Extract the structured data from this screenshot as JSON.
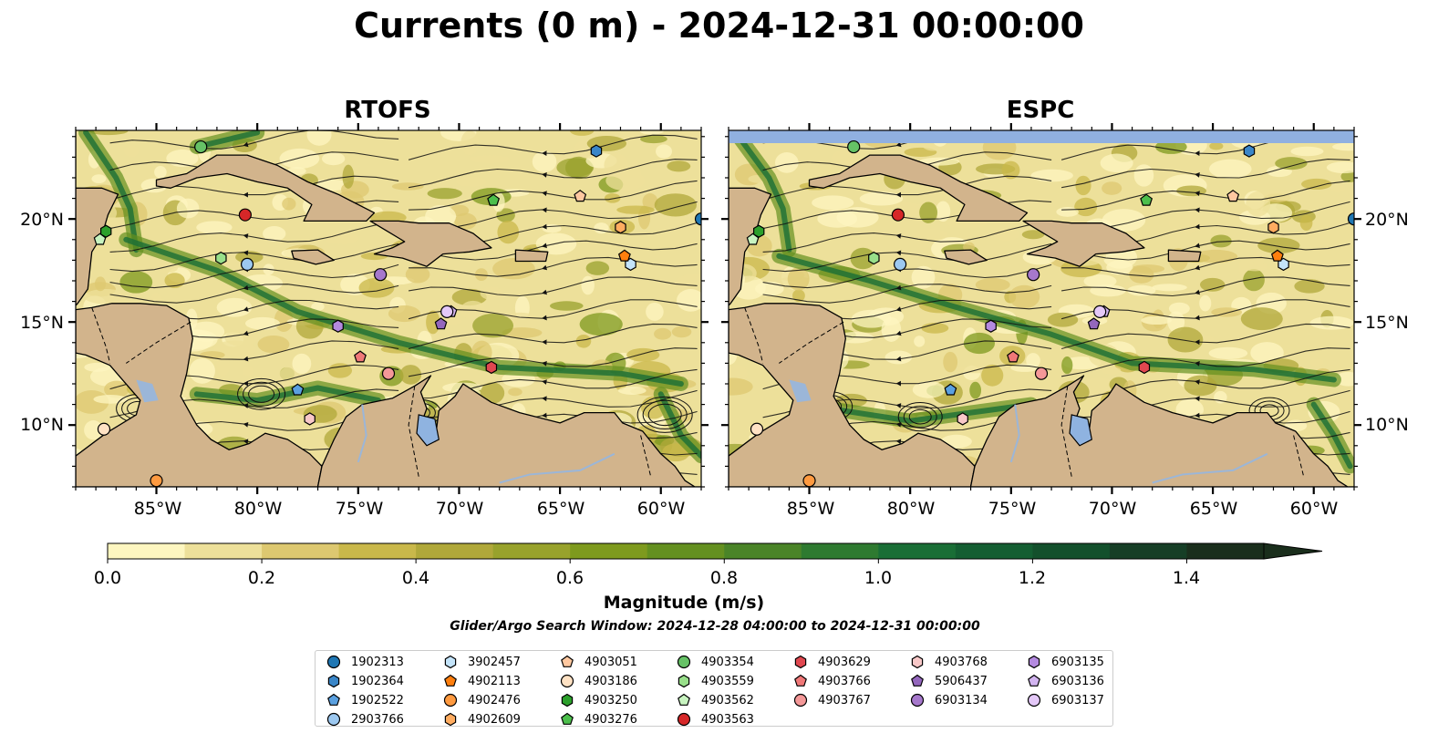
{
  "title": "Currents (0 m) - 2024-12-31 00:00:00",
  "panels": [
    {
      "title": "RTOFS",
      "closed_top": false
    },
    {
      "title": "ESPC",
      "closed_top": true
    }
  ],
  "colors": {
    "land": "#d2b48c",
    "lakes": "#8fb3e0",
    "rivers": "#9bb6d8",
    "no_data": "#90b0e0",
    "cmap": [
      "#fdf6c0",
      "#ede09a",
      "#ddc870",
      "#c9b84a",
      "#b0a83a",
      "#98a22c",
      "#7e9a1e",
      "#649020",
      "#4a8428",
      "#2e7a30",
      "#1a6e36",
      "#145e32",
      "#13502c",
      "#163e26",
      "#1a2e1c"
    ]
  },
  "colorbar": {
    "label": "Magnitude (m/s)",
    "min": 0.0,
    "max": 1.5,
    "extend": "max",
    "ticks": [
      "0.0",
      "0.2",
      "0.4",
      "0.6",
      "0.8",
      "1.0",
      "1.2",
      "1.4"
    ]
  },
  "map": {
    "lon_range": [
      -89,
      -58
    ],
    "lat_range": [
      7,
      24.3
    ],
    "lat_ticks": [
      "10°N",
      "15°N",
      "20°N"
    ],
    "lon_ticks": [
      "85°W",
      "80°W",
      "75°W",
      "70°W",
      "65°W",
      "60°W"
    ]
  },
  "search_window": "Glider/Argo Search Window: 2024-12-28 04:00:00 to 2024-12-31 00:00:00",
  "floats": [
    {
      "id": "1902313",
      "marker": "circle",
      "color": "#1f77b4",
      "lon": -58,
      "lat": 20.0
    },
    {
      "id": "1902364",
      "marker": "hexagon",
      "color": "#3a86c8",
      "lon": -63.2,
      "lat": 23.3
    },
    {
      "id": "1902522",
      "marker": "pentagon",
      "color": "#5aa0e0",
      "lon": -78.0,
      "lat": 11.7
    },
    {
      "id": "2903766",
      "marker": "circle",
      "color": "#9cc8f0",
      "lon": -80.5,
      "lat": 17.8
    },
    {
      "id": "3902457",
      "marker": "hexagon",
      "color": "#c4e4fa",
      "lon": -61.5,
      "lat": 17.8
    },
    {
      "id": "4902113",
      "marker": "pentagon",
      "color": "#ff7f0e",
      "lon": -61.8,
      "lat": 18.2
    },
    {
      "id": "4902476",
      "marker": "circle",
      "color": "#ff9a40",
      "lon": -85.0,
      "lat": 7.3
    },
    {
      "id": "4902609",
      "marker": "hexagon",
      "color": "#ffac60",
      "lon": -62.0,
      "lat": 19.6
    },
    {
      "id": "4903051",
      "marker": "pentagon",
      "color": "#ffc8a0",
      "lon": -64.0,
      "lat": 21.1
    },
    {
      "id": "4903186",
      "marker": "circle",
      "color": "#ffe2c4",
      "lon": -87.6,
      "lat": 9.8
    },
    {
      "id": "4903250",
      "marker": "hexagon",
      "color": "#2ca02c",
      "lon": -87.5,
      "lat": 19.4
    },
    {
      "id": "4903276",
      "marker": "pentagon",
      "color": "#4cbf4c",
      "lon": -68.3,
      "lat": 20.9
    },
    {
      "id": "4903354",
      "marker": "circle",
      "color": "#66c266",
      "lon": -82.8,
      "lat": 23.5
    },
    {
      "id": "4903559",
      "marker": "hexagon",
      "color": "#98df8a",
      "lon": -81.8,
      "lat": 18.1
    },
    {
      "id": "4903562",
      "marker": "pentagon",
      "color": "#c8f4c0",
      "lon": -87.8,
      "lat": 19.0
    },
    {
      "id": "4903563",
      "marker": "circle",
      "color": "#d62728",
      "lon": -80.6,
      "lat": 20.2
    },
    {
      "id": "4903629",
      "marker": "hexagon",
      "color": "#e04850",
      "lon": -68.4,
      "lat": 12.8
    },
    {
      "id": "4903766",
      "marker": "pentagon",
      "color": "#f07878",
      "lon": -74.9,
      "lat": 13.3
    },
    {
      "id": "4903767",
      "marker": "circle",
      "color": "#f49898",
      "lon": -73.5,
      "lat": 12.5
    },
    {
      "id": "4903768",
      "marker": "hexagon",
      "color": "#f8c8c8",
      "lon": -77.4,
      "lat": 10.3
    },
    {
      "id": "5906437",
      "marker": "pentagon",
      "color": "#9467bd",
      "lon": -70.9,
      "lat": 14.9
    },
    {
      "id": "6903134",
      "marker": "circle",
      "color": "#a678cc",
      "lon": -73.9,
      "lat": 17.3
    },
    {
      "id": "6903135",
      "marker": "hexagon",
      "color": "#b48ae0",
      "lon": -76.0,
      "lat": 14.8
    },
    {
      "id": "6903136",
      "marker": "pentagon",
      "color": "#d2b4f0",
      "lon": -70.4,
      "lat": 15.5
    },
    {
      "id": "6903137",
      "marker": "circle",
      "color": "#e4c8f8",
      "lon": -70.6,
      "lat": 15.5
    }
  ]
}
